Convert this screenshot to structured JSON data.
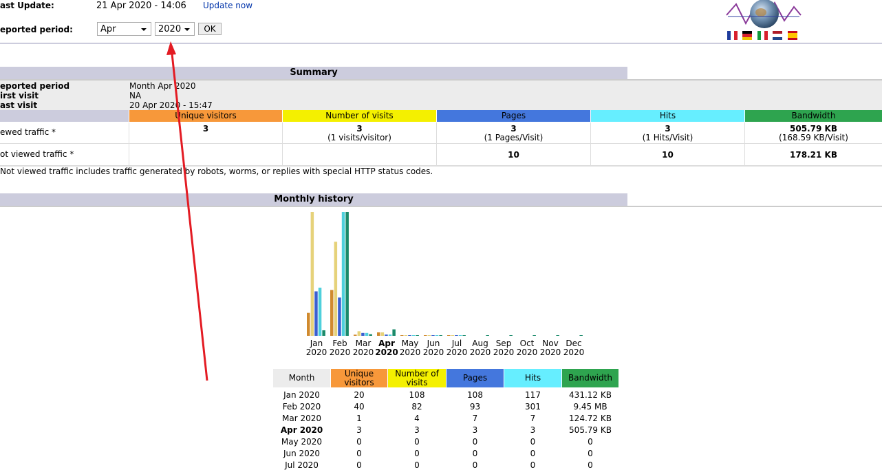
{
  "header": {
    "last_update_label": "ast Update:",
    "last_update": "21 Apr 2020 - 14:06",
    "update_link": "Update now",
    "period_label": "eported period:",
    "month_select": "Apr",
    "year_select": "2020",
    "ok_button": "OK"
  },
  "summary": {
    "title": "Summary",
    "rows": [
      [
        "eported period",
        "Month Apr 2020"
      ],
      [
        "irst visit",
        "NA"
      ],
      [
        "ast visit",
        "20 Apr 2020 - 15:47"
      ]
    ],
    "columns": [
      "Unique visitors",
      "Number of visits",
      "Pages",
      "Hits",
      "Bandwidth"
    ],
    "viewed": {
      "label": "ewed traffic *",
      "cells": [
        {
          "value": "3"
        },
        {
          "value": "3",
          "sub": "(1 visits/visitor)"
        },
        {
          "value": "3",
          "sub": "(1 Pages/Visit)"
        },
        {
          "value": "3",
          "sub": "(1 Hits/Visit)"
        },
        {
          "value": "505.79 KB",
          "sub": "(168.59 KB/Visit)"
        }
      ]
    },
    "not_viewed": {
      "label": "ot viewed traffic *",
      "cells": [
        {
          "value": "10"
        },
        {
          "value": "10"
        },
        {
          "value": "178.21 KB"
        }
      ]
    },
    "note": "Not viewed traffic includes traffic generated by robots, worms, or replies with special HTTP status codes."
  },
  "monthly_history": {
    "title": "Monthly history",
    "chart": {
      "months": [
        "Jan",
        "Feb",
        "Mar",
        "Apr",
        "May",
        "Jun",
        "Jul",
        "Aug",
        "Sep",
        "Oct",
        "Nov",
        "Dec"
      ],
      "years": [
        "2020",
        "2020",
        "2020",
        "2020",
        "2020",
        "2020",
        "2020",
        "2020",
        "2020",
        "2020",
        "2020",
        "2020"
      ],
      "bandwidth_kb": [
        431.12,
        9676.8,
        124.72,
        505.79,
        0,
        0,
        0,
        0,
        0,
        0,
        0,
        0
      ]
    },
    "table": {
      "columns": [
        "Month",
        "Unique visitors",
        "Number of visits",
        "Pages",
        "Hits",
        "Bandwidth"
      ],
      "rows": [
        [
          "Jan 2020",
          20,
          108,
          108,
          117,
          "431.12 KB"
        ],
        [
          "Feb 2020",
          40,
          82,
          93,
          301,
          "9.45 MB"
        ],
        [
          "Mar 2020",
          1,
          4,
          7,
          7,
          "124.72 KB"
        ],
        [
          "Apr 2020",
          3,
          3,
          3,
          3,
          "505.79 KB"
        ],
        [
          "May 2020",
          0,
          0,
          0,
          0,
          "0"
        ],
        [
          "Jun 2020",
          0,
          0,
          0,
          0,
          "0"
        ],
        [
          "Jul 2020",
          0,
          0,
          0,
          0,
          "0"
        ]
      ]
    }
  }
}
